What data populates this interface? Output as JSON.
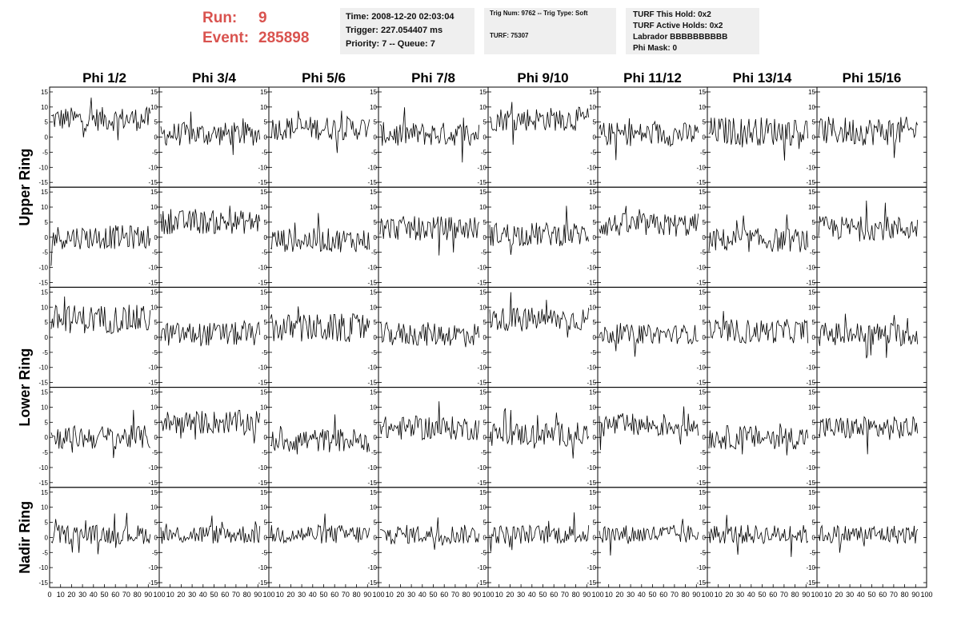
{
  "header": {
    "run_label": "Run:",
    "run_value": "9",
    "event_label": "Event:",
    "event_value": "285898",
    "time": "Time: 2008-12-20 02:03:04",
    "trigger": "Trigger: 227.054407 ms",
    "priority_queue": "Priority: 7 -- Queue: 7",
    "trig_num_type": "Trig Num: 9762 -- Trig Type: Soft",
    "turf": "TURF: 75307",
    "turf_this_hold": "TURF This Hold: 0x2",
    "turf_active_holds": "TURF Active Holds: 0x2",
    "labrador": "Labrador BBBBBBBBBB",
    "phi_mask": "Phi Mask: 0"
  },
  "colors": {
    "run_text": "#d9534f",
    "info_bg": "#efefef",
    "trace": "#000000"
  },
  "chart_data": {
    "type": "line",
    "columns": [
      "Phi 1/2",
      "Phi 3/4",
      "Phi 5/6",
      "Phi 7/8",
      "Phi 9/10",
      "Phi 11/12",
      "Phi 13/14",
      "Phi 15/16"
    ],
    "rings": [
      "Upper Ring",
      "Lower Ring",
      "Nadir Ring"
    ],
    "ylim": [
      -15,
      15
    ],
    "xlim": [
      0,
      100
    ],
    "y_ticks": [
      "15",
      "10",
      "5",
      "0",
      "-5",
      "-10",
      "-15"
    ],
    "x_ticks": [
      "0",
      "10",
      "20",
      "30",
      "40",
      "50",
      "60",
      "70",
      "80",
      "90",
      "100"
    ],
    "samples_per_trace": 90,
    "traces": [
      {
        "ring": "Upper Ring",
        "row": 1,
        "offsets": [
          6,
          1,
          3,
          1,
          6,
          1,
          2,
          2
        ],
        "amplitude": [
          2.5,
          2.5,
          2.5,
          2.5,
          2.5,
          2.5,
          3,
          3
        ]
      },
      {
        "ring": "Upper Ring",
        "row": 2,
        "offsets": [
          0,
          5,
          -1,
          3,
          1,
          4,
          -1,
          3
        ],
        "amplitude": [
          2.5,
          2.5,
          2.5,
          2.5,
          2.5,
          2.5,
          2.5,
          2.5
        ]
      },
      {
        "ring": "Lower Ring",
        "row": 1,
        "offsets": [
          6,
          1,
          3,
          1,
          6,
          1,
          2,
          1
        ],
        "amplitude": [
          3,
          2.5,
          3,
          2.5,
          2.5,
          2,
          2.5,
          2.5
        ]
      },
      {
        "ring": "Lower Ring",
        "row": 2,
        "offsets": [
          0,
          5,
          -1,
          3,
          1,
          4,
          0,
          3
        ],
        "amplitude": [
          2.5,
          2.5,
          2.5,
          2.5,
          2.5,
          2.5,
          2.5,
          2.5
        ]
      },
      {
        "ring": "Nadir Ring",
        "row": 1,
        "offsets": [
          1,
          1,
          1,
          1,
          1,
          1,
          1,
          1
        ],
        "amplitude": [
          2,
          2,
          2,
          2,
          2,
          2,
          2,
          2
        ]
      }
    ]
  }
}
